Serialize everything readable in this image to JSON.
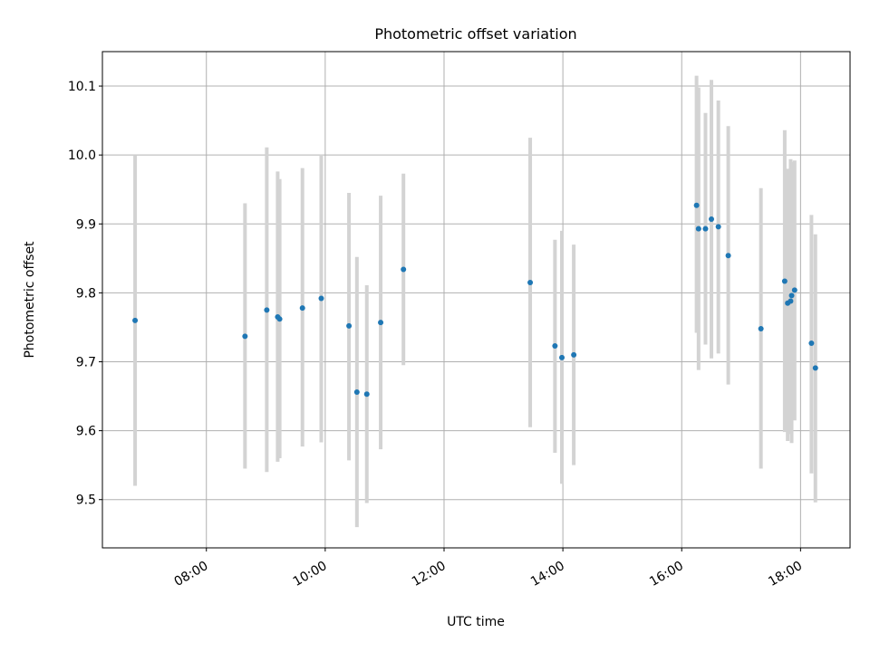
{
  "chart_data": {
    "type": "scatter",
    "title": "Photometric offset variation",
    "xlabel": "UTC time",
    "ylabel": "Photometric offset",
    "x_unit": "UTC time (HH:MM)",
    "xlim": [
      "06:15",
      "18:50"
    ],
    "ylim": [
      9.43,
      10.15
    ],
    "x_ticks": [
      "08:00",
      "10:00",
      "12:00",
      "14:00",
      "16:00",
      "18:00"
    ],
    "y_ticks": [
      9.5,
      9.6,
      9.7,
      9.8,
      9.9,
      10.0,
      10.1
    ],
    "grid": true,
    "series": [
      {
        "style": "point with vertical error bar",
        "color": "#1f77b4",
        "errorbar_color": "#d3d3d3",
        "points": [
          {
            "x": "06:48",
            "y": 9.76,
            "ymin": 9.52,
            "ymax": 10.0
          },
          {
            "x": "08:39",
            "y": 9.737,
            "ymin": 9.545,
            "ymax": 9.93
          },
          {
            "x": "09:01",
            "y": 9.775,
            "ymin": 9.54,
            "ymax": 10.011
          },
          {
            "x": "09:12",
            "y": 9.765,
            "ymin": 9.555,
            "ymax": 9.976
          },
          {
            "x": "09:14",
            "y": 9.762,
            "ymin": 9.56,
            "ymax": 9.965
          },
          {
            "x": "09:37",
            "y": 9.778,
            "ymin": 9.577,
            "ymax": 9.981
          },
          {
            "x": "09:56",
            "y": 9.792,
            "ymin": 9.583,
            "ymax": 10.001
          },
          {
            "x": "10:24",
            "y": 9.752,
            "ymin": 9.557,
            "ymax": 9.945
          },
          {
            "x": "10:32",
            "y": 9.656,
            "ymin": 9.46,
            "ymax": 9.852
          },
          {
            "x": "10:42",
            "y": 9.653,
            "ymin": 9.495,
            "ymax": 9.811
          },
          {
            "x": "10:56",
            "y": 9.757,
            "ymin": 9.573,
            "ymax": 9.941
          },
          {
            "x": "11:19",
            "y": 9.834,
            "ymin": 9.695,
            "ymax": 9.973
          },
          {
            "x": "13:27",
            "y": 9.815,
            "ymin": 9.605,
            "ymax": 10.025
          },
          {
            "x": "13:52",
            "y": 9.723,
            "ymin": 9.568,
            "ymax": 9.877
          },
          {
            "x": "13:59",
            "y": 9.706,
            "ymin": 9.523,
            "ymax": 9.89
          },
          {
            "x": "14:11",
            "y": 9.71,
            "ymin": 9.55,
            "ymax": 9.87
          },
          {
            "x": "16:15",
            "y": 9.927,
            "ymin": 9.742,
            "ymax": 10.115
          },
          {
            "x": "16:17",
            "y": 9.893,
            "ymin": 9.688,
            "ymax": 10.098
          },
          {
            "x": "16:24",
            "y": 9.893,
            "ymin": 9.725,
            "ymax": 10.061
          },
          {
            "x": "16:30",
            "y": 9.907,
            "ymin": 9.705,
            "ymax": 10.109
          },
          {
            "x": "16:37",
            "y": 9.896,
            "ymin": 9.712,
            "ymax": 10.079
          },
          {
            "x": "16:47",
            "y": 9.854,
            "ymin": 9.667,
            "ymax": 10.042
          },
          {
            "x": "17:20",
            "y": 9.748,
            "ymin": 9.545,
            "ymax": 9.952
          },
          {
            "x": "17:44",
            "y": 9.817,
            "ymin": 9.598,
            "ymax": 10.036
          },
          {
            "x": "17:47",
            "y": 9.785,
            "ymin": 9.585,
            "ymax": 9.98
          },
          {
            "x": "17:50",
            "y": 9.788,
            "ymin": 9.595,
            "ymax": 9.994
          },
          {
            "x": "17:51",
            "y": 9.796,
            "ymin": 9.582,
            "ymax": 9.99
          },
          {
            "x": "17:54",
            "y": 9.804,
            "ymin": 9.615,
            "ymax": 9.992
          },
          {
            "x": "18:11",
            "y": 9.727,
            "ymin": 9.538,
            "ymax": 9.913
          },
          {
            "x": "18:15",
            "y": 9.691,
            "ymin": 9.496,
            "ymax": 9.885
          }
        ]
      }
    ]
  }
}
